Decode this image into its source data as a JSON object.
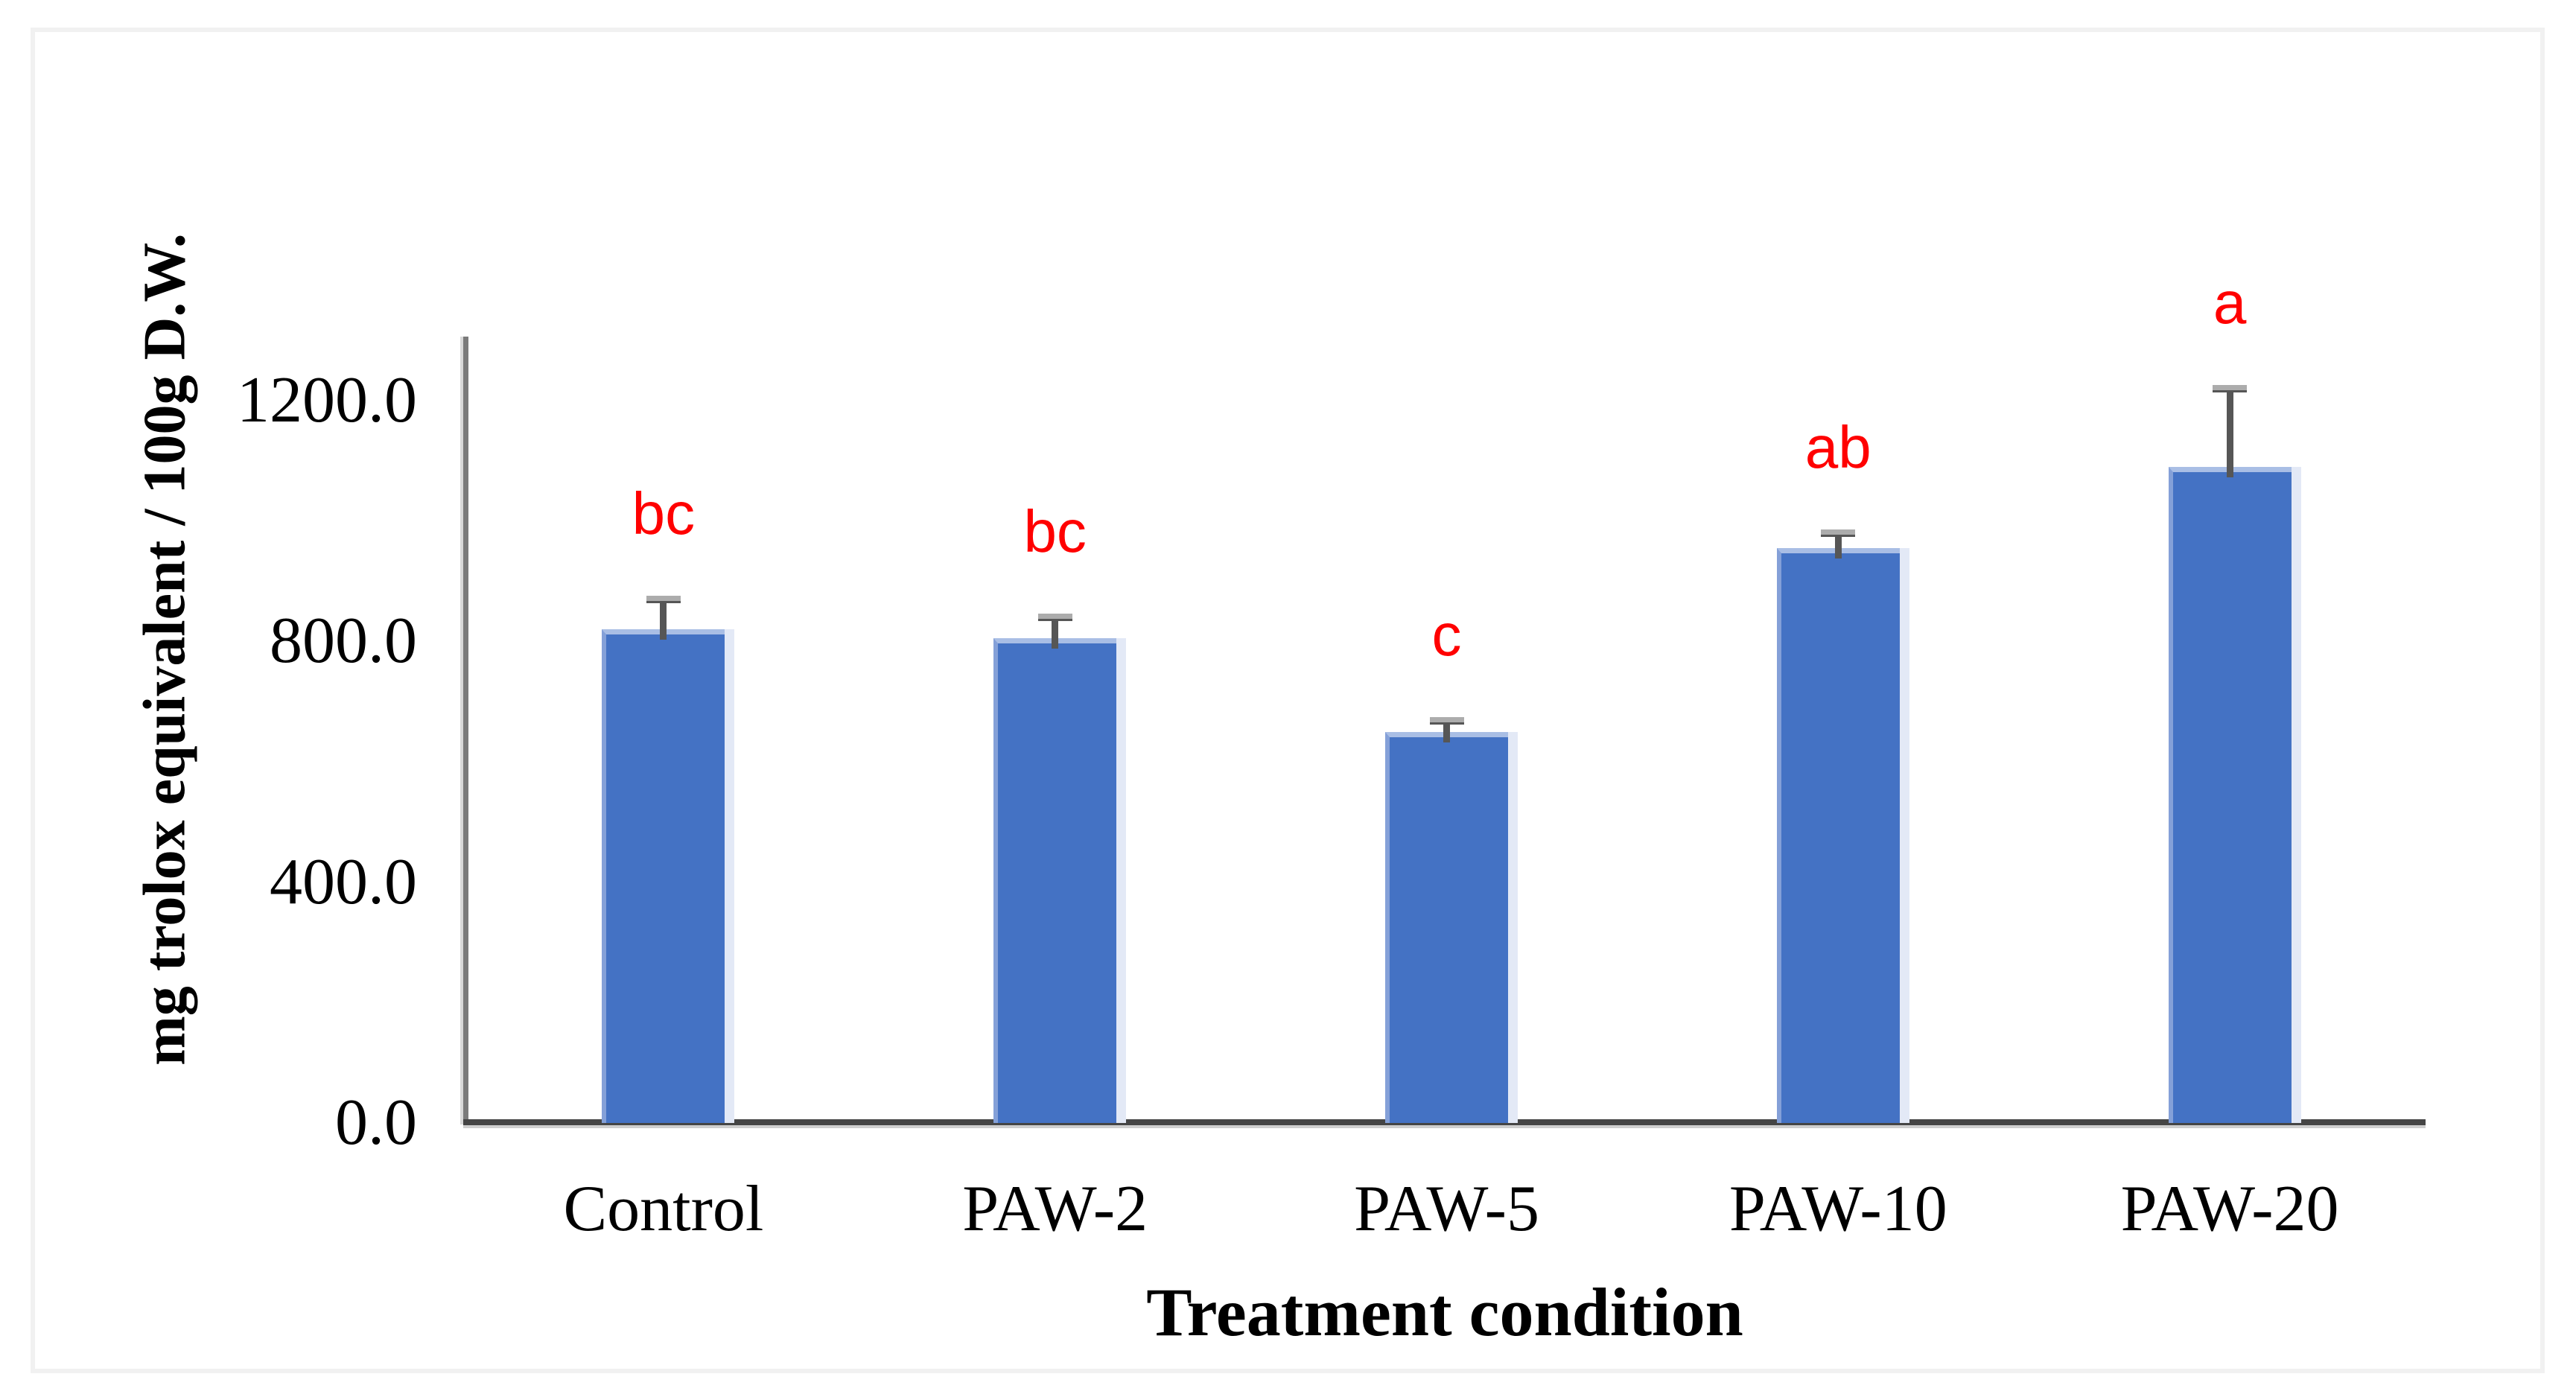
{
  "figure": {
    "background_color": "#FFFFFF",
    "border_color": "#F1F1F1"
  },
  "chart_data": {
    "type": "bar",
    "categories": [
      "Control",
      "PAW-2",
      "PAW-5",
      "PAW-10",
      "PAW-20"
    ],
    "values": [
      820,
      805,
      650,
      955,
      1090
    ],
    "errors_plus": [
      50,
      35,
      18,
      25,
      130
    ],
    "sig_letters": [
      "bc",
      "bc",
      "c",
      "ab",
      "a"
    ],
    "title": "",
    "xlabel": "Treatment condition",
    "ylabel": "mg trolox equivalent / 100g  D.W.",
    "yticks": [
      {
        "value": 0,
        "label": "0.0"
      },
      {
        "value": 400,
        "label": "400.0"
      },
      {
        "value": 800,
        "label": "800.0"
      },
      {
        "value": 1200,
        "label": "1200.0"
      }
    ],
    "ylim": [
      0,
      1300
    ],
    "grid": false,
    "legend": false,
    "bar_color": "#4472C4",
    "bar_top_edge_color": "#A9BEE5",
    "bar_left_edge_color": "#84A0D8",
    "bar_right_glow_color": "#E3E9F6",
    "error_line_color": "#565656",
    "error_cap_color": "#ACACAC",
    "sig_letter_color": "#FF0000",
    "y_axis_line_color": "#7B7B7B",
    "x_axis_line_color": "#454545",
    "tick_label_color": "#000000"
  }
}
